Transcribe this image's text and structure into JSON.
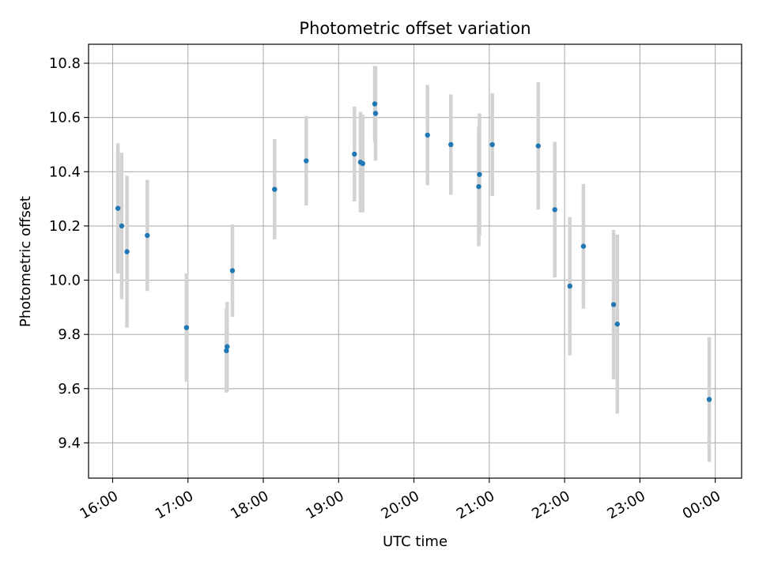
{
  "chart_data": {
    "type": "scatter",
    "title": "Photometric offset variation",
    "xlabel": "UTC time",
    "ylabel": "Photometric offset",
    "x_unit": "hours (UTC, continuing past midnight)",
    "xlim": [
      15.68,
      24.35
    ],
    "ylim": [
      9.27,
      10.87
    ],
    "grid": true,
    "x_ticks": [
      {
        "value": 16,
        "label": "16:00"
      },
      {
        "value": 17,
        "label": "17:00"
      },
      {
        "value": 18,
        "label": "18:00"
      },
      {
        "value": 19,
        "label": "19:00"
      },
      {
        "value": 20,
        "label": "20:00"
      },
      {
        "value": 21,
        "label": "21:00"
      },
      {
        "value": 22,
        "label": "22:00"
      },
      {
        "value": 23,
        "label": "23:00"
      },
      {
        "value": 24,
        "label": "00:00"
      }
    ],
    "y_ticks": [
      {
        "value": 9.4,
        "label": "9.4"
      },
      {
        "value": 9.6,
        "label": "9.6"
      },
      {
        "value": 9.8,
        "label": "9.8"
      },
      {
        "value": 10.0,
        "label": "10.0"
      },
      {
        "value": 10.2,
        "label": "10.2"
      },
      {
        "value": 10.4,
        "label": "10.4"
      },
      {
        "value": 10.6,
        "label": "10.6"
      },
      {
        "value": 10.8,
        "label": "10.8"
      }
    ],
    "point_color": "#1f77b4",
    "errorbar_color": "#d3d3d3",
    "points": [
      {
        "x": 16.07,
        "y": 10.265,
        "err": 0.24
      },
      {
        "x": 16.12,
        "y": 10.2,
        "err": 0.27
      },
      {
        "x": 16.19,
        "y": 10.105,
        "err": 0.28
      },
      {
        "x": 16.46,
        "y": 10.165,
        "err": 0.205
      },
      {
        "x": 16.98,
        "y": 9.825,
        "err": 0.2
      },
      {
        "x": 17.51,
        "y": 9.74,
        "err": 0.155
      },
      {
        "x": 17.52,
        "y": 9.755,
        "err": 0.165
      },
      {
        "x": 17.59,
        "y": 10.035,
        "err": 0.17
      },
      {
        "x": 18.15,
        "y": 10.335,
        "err": 0.185
      },
      {
        "x": 18.57,
        "y": 10.44,
        "err": 0.165
      },
      {
        "x": 19.21,
        "y": 10.465,
        "err": 0.175
      },
      {
        "x": 19.29,
        "y": 10.435,
        "err": 0.185
      },
      {
        "x": 19.32,
        "y": 10.43,
        "err": 0.18
      },
      {
        "x": 19.48,
        "y": 10.65,
        "err": 0.14
      },
      {
        "x": 19.49,
        "y": 10.615,
        "err": 0.175
      },
      {
        "x": 20.18,
        "y": 10.535,
        "err": 0.185
      },
      {
        "x": 20.49,
        "y": 10.5,
        "err": 0.185
      },
      {
        "x": 20.86,
        "y": 10.345,
        "err": 0.22
      },
      {
        "x": 20.87,
        "y": 10.39,
        "err": 0.225
      },
      {
        "x": 21.04,
        "y": 10.5,
        "err": 0.19
      },
      {
        "x": 21.65,
        "y": 10.495,
        "err": 0.235
      },
      {
        "x": 21.87,
        "y": 10.26,
        "err": 0.25
      },
      {
        "x": 22.07,
        "y": 9.978,
        "err": 0.255
      },
      {
        "x": 22.25,
        "y": 10.125,
        "err": 0.23
      },
      {
        "x": 22.65,
        "y": 9.91,
        "err": 0.275
      },
      {
        "x": 22.7,
        "y": 9.838,
        "err": 0.33
      },
      {
        "x": 23.92,
        "y": 9.56,
        "err": 0.23
      }
    ]
  }
}
